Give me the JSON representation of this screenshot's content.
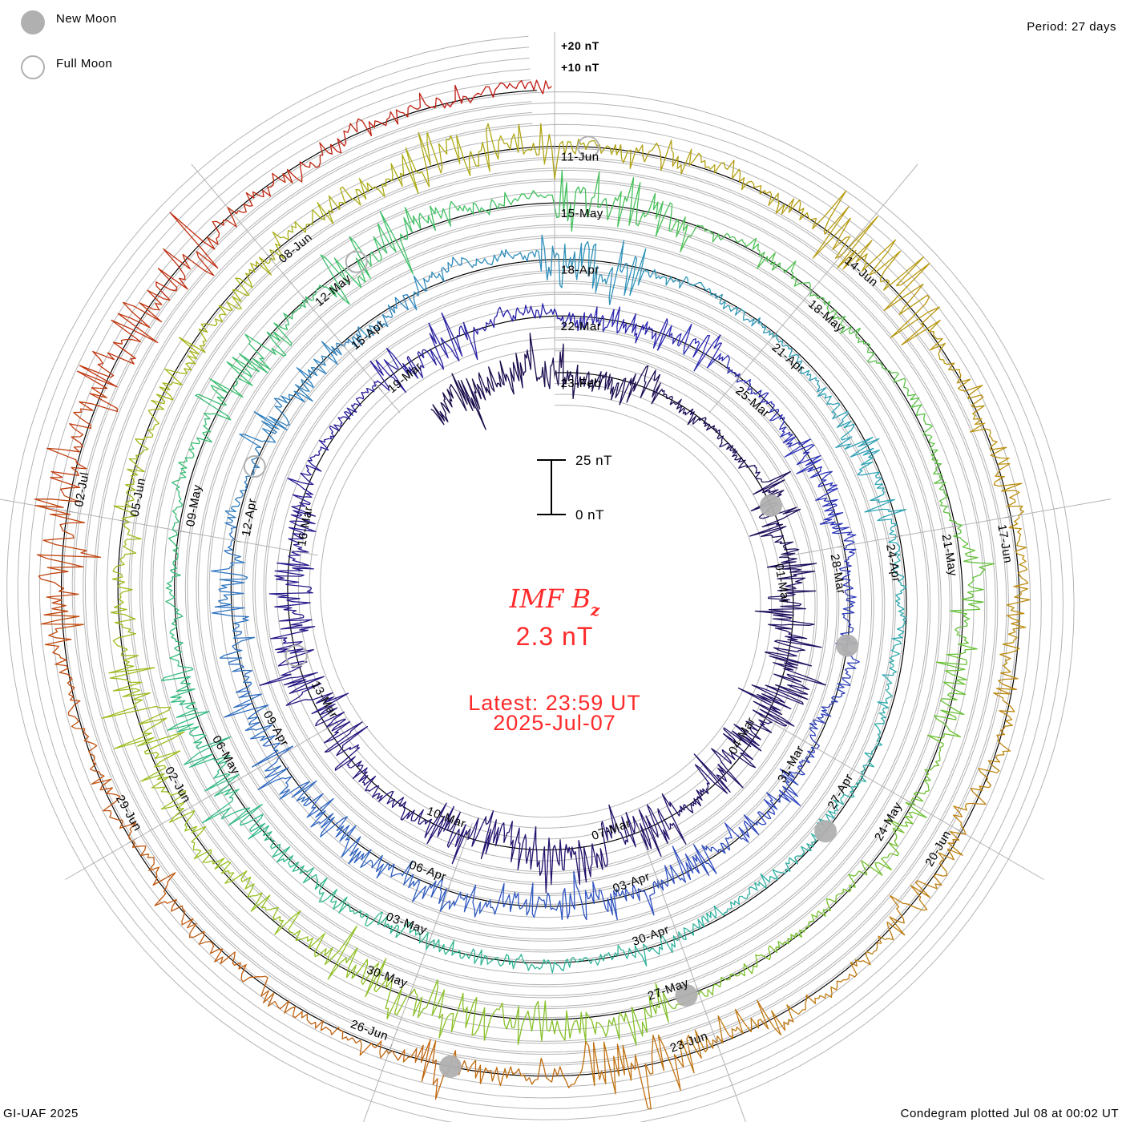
{
  "legend": {
    "new_moon": "New Moon",
    "full_moon": "Full Moon"
  },
  "period_label": "Period: 27 days",
  "footer": {
    "left": "GI-UAF 2025",
    "right": "Condegram plotted Jul 08 at 00:02 UT"
  },
  "center": {
    "title_main": "IMF B",
    "title_sub": "z",
    "value": "2.3 nT",
    "latest": "Latest: 23:59 UT",
    "date": "2025-Jul-07"
  },
  "scale_bar": {
    "top_label": "25 nT",
    "bottom_label": "0 nT",
    "range_nT": [
      0,
      25
    ]
  },
  "ring_labels": [
    "+20 nT",
    "+10 nT"
  ],
  "colors": {
    "text_accent": "#ff2a2a",
    "moon": "#b0b0b0",
    "grid": "#b4b4b4"
  },
  "chart_data": {
    "type": "line",
    "layout": "spiral condegram",
    "title": "IMF Bz",
    "units": "nT",
    "period_days": 27,
    "reference_date": "2025-02-23",
    "start_date": "2025-02-20",
    "end_date": "2025-07-07T23:59Z",
    "latest_value_nT": 2.3,
    "grid_step_nT": 5,
    "typical_range_nT": [
      -20,
      20
    ],
    "date_labels": [
      {
        "text": "23-Feb",
        "day": 0
      },
      {
        "text": "01-Mar",
        "day": 6
      },
      {
        "text": "04-Mar",
        "day": 9
      },
      {
        "text": "07-Mar",
        "day": 12
      },
      {
        "text": "10-Mar",
        "day": 15
      },
      {
        "text": "13-Mar",
        "day": 18
      },
      {
        "text": "16-Mar",
        "day": 21
      },
      {
        "text": "19-Mar",
        "day": 24
      },
      {
        "text": "22-Mar",
        "day": 27
      },
      {
        "text": "25-Mar",
        "day": 30
      },
      {
        "text": "28-Mar",
        "day": 33
      },
      {
        "text": "31-Mar",
        "day": 36
      },
      {
        "text": "03-Apr",
        "day": 39
      },
      {
        "text": "06-Apr",
        "day": 42
      },
      {
        "text": "09-Apr",
        "day": 45
      },
      {
        "text": "12-Apr",
        "day": 48
      },
      {
        "text": "15-Apr",
        "day": 51
      },
      {
        "text": "18-Apr",
        "day": 54
      },
      {
        "text": "21-Apr",
        "day": 57
      },
      {
        "text": "24-Apr",
        "day": 60
      },
      {
        "text": "27-Apr",
        "day": 63
      },
      {
        "text": "30-Apr",
        "day": 66
      },
      {
        "text": "03-May",
        "day": 69
      },
      {
        "text": "06-May",
        "day": 72
      },
      {
        "text": "09-May",
        "day": 75
      },
      {
        "text": "12-May",
        "day": 78
      },
      {
        "text": "15-May",
        "day": 81
      },
      {
        "text": "18-May",
        "day": 84
      },
      {
        "text": "21-May",
        "day": 87
      },
      {
        "text": "24-May",
        "day": 90
      },
      {
        "text": "27-May",
        "day": 93
      },
      {
        "text": "30-May",
        "day": 96
      },
      {
        "text": "02-Jun",
        "day": 99
      },
      {
        "text": "05-Jun",
        "day": 102
      },
      {
        "text": "08-Jun",
        "day": 105
      },
      {
        "text": "11-Jun",
        "day": 108
      },
      {
        "text": "14-Jun",
        "day": 111
      },
      {
        "text": "17-Jun",
        "day": 114
      },
      {
        "text": "20-Jun",
        "day": 117
      },
      {
        "text": "23-Jun",
        "day": 120
      },
      {
        "text": "26-Jun",
        "day": 123
      },
      {
        "text": "29-Jun",
        "day": 126
      },
      {
        "text": "02-Jul",
        "day": 129
      }
    ],
    "new_moons": [
      "2025-02-28T00:45Z",
      "2025-03-29T10:58Z",
      "2025-04-27T19:31Z",
      "2025-05-27T03:02Z",
      "2025-06-25T10:31Z"
    ],
    "full_moons": [
      "2025-03-14T06:55Z",
      "2025-04-13T00:22Z",
      "2025-05-12T16:56Z",
      "2025-06-11T07:44Z"
    ],
    "color_stops": [
      [
        0.0,
        "#1a0b4a"
      ],
      [
        0.12,
        "#22106e"
      ],
      [
        0.22,
        "#2a24b0"
      ],
      [
        0.3,
        "#2f4fc0"
      ],
      [
        0.38,
        "#2f82bf"
      ],
      [
        0.45,
        "#2fa6b4"
      ],
      [
        0.52,
        "#30b890"
      ],
      [
        0.6,
        "#40c060"
      ],
      [
        0.67,
        "#70c030"
      ],
      [
        0.73,
        "#98c020"
      ],
      [
        0.78,
        "#aab018"
      ],
      [
        0.83,
        "#b8960f"
      ],
      [
        0.88,
        "#c07a10"
      ],
      [
        0.94,
        "#c05010"
      ],
      [
        1.0,
        "#c01010"
      ]
    ]
  }
}
